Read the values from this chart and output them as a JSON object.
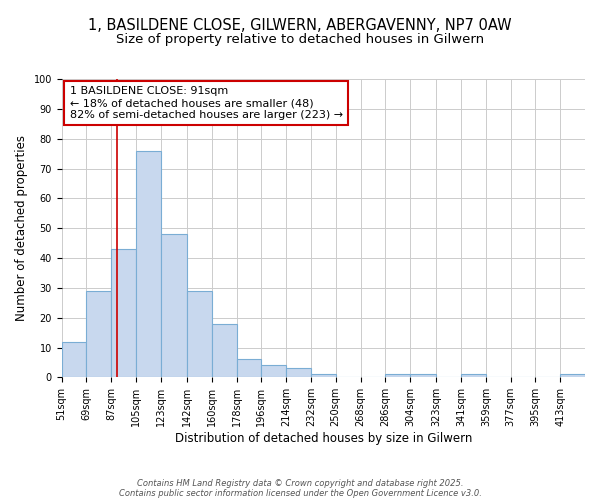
{
  "title1": "1, BASILDENE CLOSE, GILWERN, ABERGAVENNY, NP7 0AW",
  "title2": "Size of property relative to detached houses in Gilwern",
  "xlabel": "Distribution of detached houses by size in Gilwern",
  "ylabel": "Number of detached properties",
  "bin_edges": [
    51,
    69,
    87,
    105,
    123,
    142,
    160,
    178,
    196,
    214,
    232,
    250,
    268,
    286,
    304,
    323,
    341,
    359,
    377,
    395,
    413
  ],
  "bar_heights": [
    12,
    29,
    43,
    76,
    48,
    29,
    18,
    6,
    4,
    3,
    1,
    0,
    0,
    1,
    1,
    0,
    1,
    0,
    0,
    0,
    1
  ],
  "bar_color": "#c8d8ee",
  "bar_edge_color": "#7aadd4",
  "vline_x": 91,
  "vline_color": "#cc0000",
  "annotation_line1": "1 BASILDENE CLOSE: 91sqm",
  "annotation_line2": "← 18% of detached houses are smaller (48)",
  "annotation_line3": "82% of semi-detached houses are larger (223) →",
  "annotation_box_color": "#cc0000",
  "ylim": [
    0,
    100
  ],
  "yticks": [
    0,
    10,
    20,
    30,
    40,
    50,
    60,
    70,
    80,
    90,
    100
  ],
  "background_color": "#ffffff",
  "grid_color": "#cccccc",
  "footer_line1": "Contains HM Land Registry data © Crown copyright and database right 2025.",
  "footer_line2": "Contains public sector information licensed under the Open Government Licence v3.0.",
  "title_fontsize": 10.5,
  "subtitle_fontsize": 9.5,
  "ylabel_fontsize": 8.5,
  "xlabel_fontsize": 8.5,
  "tick_fontsize": 7,
  "annot_fontsize": 8,
  "footer_fontsize": 6
}
